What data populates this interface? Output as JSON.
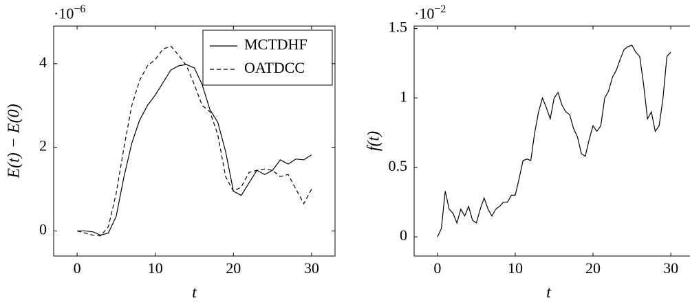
{
  "chart_data": [
    {
      "type": "line",
      "xlabel": "t",
      "ylabel": "E(t) − E(0)",
      "y_multiplier": {
        "base": "·10",
        "exponent": "−6"
      },
      "x": [
        0,
        1,
        2,
        3,
        4,
        5,
        6,
        7,
        8,
        9,
        10,
        11,
        12,
        13,
        14,
        15,
        16,
        17,
        18,
        19,
        20,
        21,
        22,
        23,
        24,
        25,
        26,
        27,
        28,
        29,
        30
      ],
      "series": [
        {
          "name": "MCTDHF",
          "color": "#000000",
          "dash": "solid",
          "values": [
            0,
            0,
            -0.02,
            -0.1,
            -0.05,
            0.35,
            1.3,
            2.1,
            2.65,
            3.0,
            3.25,
            3.55,
            3.85,
            3.95,
            3.98,
            3.9,
            3.5,
            2.9,
            2.6,
            1.9,
            0.95,
            0.85,
            1.15,
            1.45,
            1.35,
            1.45,
            1.7,
            1.6,
            1.72,
            1.7,
            1.82
          ]
        },
        {
          "name": "OATDCC",
          "color": "#000000",
          "dash": "dashed",
          "values": [
            0,
            -0.05,
            -0.1,
            -0.12,
            0.1,
            0.9,
            2.0,
            3.0,
            3.6,
            3.95,
            4.1,
            4.35,
            4.42,
            4.2,
            3.95,
            3.5,
            3.0,
            2.85,
            2.3,
            1.3,
            0.95,
            1.05,
            1.4,
            1.45,
            1.48,
            1.45,
            1.3,
            1.35,
            1.0,
            0.65,
            1.0
          ]
        }
      ],
      "xlim": [
        -3,
        33
      ],
      "xticks": [
        0,
        10,
        20,
        30
      ],
      "ylim": [
        -0.6,
        4.9
      ],
      "yticks": [
        0,
        2,
        4
      ],
      "legend_loc": "upper right"
    },
    {
      "type": "line",
      "xlabel": "t",
      "ylabel": "f(t)",
      "y_multiplier": {
        "base": "·10",
        "exponent": "−2"
      },
      "x": [
        0,
        0.5,
        1,
        1.5,
        2,
        2.5,
        3,
        3.5,
        4,
        4.5,
        5,
        5.5,
        6,
        6.5,
        7,
        7.5,
        8,
        8.5,
        9,
        9.5,
        10,
        10.5,
        11,
        11.5,
        12,
        12.5,
        13,
        13.5,
        14,
        14.5,
        15,
        15.5,
        16,
        16.5,
        17,
        17.5,
        18,
        18.5,
        19,
        19.5,
        20,
        20.5,
        21,
        21.5,
        22,
        22.5,
        23,
        23.5,
        24,
        24.5,
        25,
        25.5,
        26,
        26.5,
        27,
        27.5,
        28,
        28.5,
        29,
        29.5,
        30
      ],
      "series": [
        {
          "color": "#000000",
          "dash": "solid",
          "values": [
            0,
            0.06,
            0.33,
            0.2,
            0.17,
            0.1,
            0.2,
            0.15,
            0.22,
            0.12,
            0.1,
            0.2,
            0.28,
            0.2,
            0.15,
            0.2,
            0.22,
            0.25,
            0.25,
            0.3,
            0.3,
            0.42,
            0.55,
            0.56,
            0.55,
            0.75,
            0.9,
            1.0,
            0.93,
            0.85,
            1.0,
            1.04,
            0.95,
            0.9,
            0.88,
            0.78,
            0.72,
            0.6,
            0.58,
            0.7,
            0.8,
            0.76,
            0.8,
            1.0,
            1.05,
            1.15,
            1.2,
            1.28,
            1.35,
            1.37,
            1.38,
            1.33,
            1.3,
            1.1,
            0.85,
            0.9,
            0.76,
            0.8,
            1.0,
            1.3,
            1.33
          ]
        }
      ],
      "xlim": [
        -3,
        33
      ],
      "xticks": [
        0,
        10,
        20,
        30
      ],
      "ylim": [
        -0.138,
        1.518
      ],
      "yticks": [
        0,
        0.5,
        1,
        1.5
      ]
    }
  ]
}
